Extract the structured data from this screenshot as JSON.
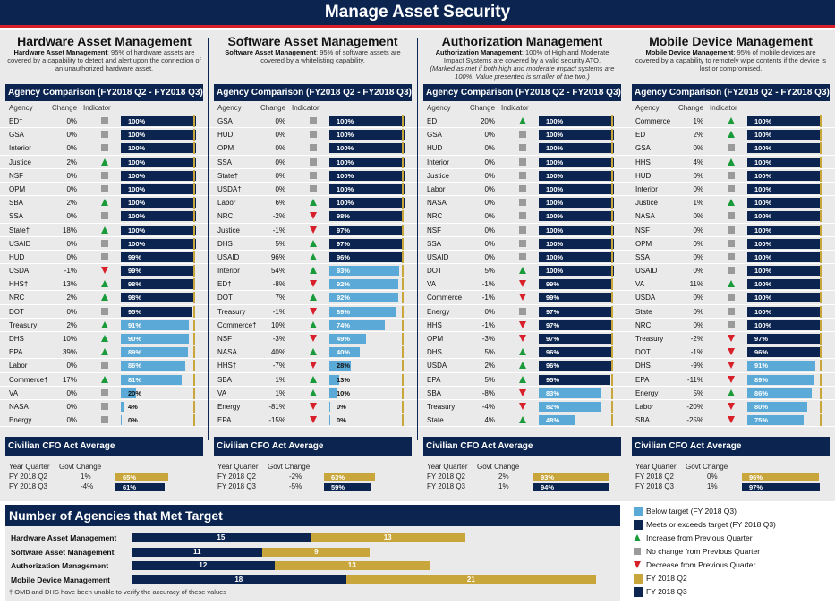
{
  "title": "Manage Asset Security",
  "colors": {
    "navy": "#0b2550",
    "blue": "#5aa9d6",
    "gold": "#c9a63b",
    "green": "#1a9b3a",
    "red": "#d7202a",
    "gray": "#9a9a9a"
  },
  "panels": [
    {
      "title": "Hardware Asset Management",
      "desc_bold": "Hardware Asset Management",
      "desc": ": 95% of hardware assets are covered by a capability to detect and alert upon the connection of an unauthorized hardware asset.",
      "comparison_header": "Agency Comparison (FY2018 Q2 - FY2018 Q3)",
      "col_agency": "Agency",
      "col_change": "Change",
      "col_indicator": "Indicator",
      "rows": [
        {
          "agency": "ED†",
          "change": "0%",
          "ind": "nc",
          "value": 100,
          "label": "100%"
        },
        {
          "agency": "GSA",
          "change": "0%",
          "ind": "nc",
          "value": 100,
          "label": "100%"
        },
        {
          "agency": "Interior",
          "change": "0%",
          "ind": "nc",
          "value": 100,
          "label": "100%"
        },
        {
          "agency": "Justice",
          "change": "2%",
          "ind": "up",
          "value": 100,
          "label": "100%"
        },
        {
          "agency": "NSF",
          "change": "0%",
          "ind": "nc",
          "value": 100,
          "label": "100%"
        },
        {
          "agency": "OPM",
          "change": "0%",
          "ind": "nc",
          "value": 100,
          "label": "100%"
        },
        {
          "agency": "SBA",
          "change": "2%",
          "ind": "up",
          "value": 100,
          "label": "100%"
        },
        {
          "agency": "SSA",
          "change": "0%",
          "ind": "nc",
          "value": 100,
          "label": "100%"
        },
        {
          "agency": "State†",
          "change": "18%",
          "ind": "up",
          "value": 100,
          "label": "100%"
        },
        {
          "agency": "USAID",
          "change": "0%",
          "ind": "nc",
          "value": 100,
          "label": "100%"
        },
        {
          "agency": "HUD",
          "change": "0%",
          "ind": "nc",
          "value": 99,
          "label": "99%"
        },
        {
          "agency": "USDA",
          "change": "-1%",
          "ind": "dn",
          "value": 99,
          "label": "99%"
        },
        {
          "agency": "HHS†",
          "change": "13%",
          "ind": "up",
          "value": 98,
          "label": "98%"
        },
        {
          "agency": "NRC",
          "change": "2%",
          "ind": "up",
          "value": 98,
          "label": "98%"
        },
        {
          "agency": "DOT",
          "change": "0%",
          "ind": "nc",
          "value": 95,
          "label": "95%"
        },
        {
          "agency": "Treasury",
          "change": "2%",
          "ind": "up",
          "value": 91,
          "label": "91%"
        },
        {
          "agency": "DHS",
          "change": "10%",
          "ind": "up",
          "value": 90,
          "label": "90%"
        },
        {
          "agency": "EPA",
          "change": "39%",
          "ind": "up",
          "value": 89,
          "label": "89%"
        },
        {
          "agency": "Labor",
          "change": "0%",
          "ind": "nc",
          "value": 86,
          "label": "86%"
        },
        {
          "agency": "Commerce†",
          "change": "17%",
          "ind": "up",
          "value": 81,
          "label": "81%"
        },
        {
          "agency": "VA",
          "change": "0%",
          "ind": "nc",
          "value": 20,
          "label": "20%"
        },
        {
          "agency": "NASA",
          "change": "0%",
          "ind": "nc",
          "value": 4,
          "label": "4%"
        },
        {
          "agency": "Energy",
          "change": "0%",
          "ind": "nc",
          "value": 0,
          "label": "0%"
        }
      ],
      "cfo_header": "Civilian CFO Act Average",
      "cfo_cols": [
        "Year Quarter",
        "Govt Change"
      ],
      "cfo": [
        {
          "q": "FY 2018 Q2",
          "change": "1%",
          "value": 65,
          "label": "65%"
        },
        {
          "q": "FY 2018 Q3",
          "change": "-4%",
          "value": 61,
          "label": "61%"
        }
      ]
    },
    {
      "title": "Software Asset Management",
      "desc_bold": "Software Asset Management",
      "desc": ": 95% of software assets are covered by a whitelisting capability.",
      "comparison_header": "Agency Comparison (FY2018 Q2 - FY2018 Q3)",
      "col_agency": "Agency",
      "col_change": "Change",
      "col_indicator": "Indicator",
      "rows": [
        {
          "agency": "GSA",
          "change": "0%",
          "ind": "nc",
          "value": 100,
          "label": "100%"
        },
        {
          "agency": "HUD",
          "change": "0%",
          "ind": "nc",
          "value": 100,
          "label": "100%"
        },
        {
          "agency": "OPM",
          "change": "0%",
          "ind": "nc",
          "value": 100,
          "label": "100%"
        },
        {
          "agency": "SSA",
          "change": "0%",
          "ind": "nc",
          "value": 100,
          "label": "100%"
        },
        {
          "agency": "State†",
          "change": "0%",
          "ind": "nc",
          "value": 100,
          "label": "100%"
        },
        {
          "agency": "USDA†",
          "change": "0%",
          "ind": "nc",
          "value": 100,
          "label": "100%"
        },
        {
          "agency": "Labor",
          "change": "6%",
          "ind": "up",
          "value": 100,
          "label": "100%"
        },
        {
          "agency": "NRC",
          "change": "-2%",
          "ind": "dn",
          "value": 98,
          "label": "98%"
        },
        {
          "agency": "Justice",
          "change": "-1%",
          "ind": "dn",
          "value": 97,
          "label": "97%"
        },
        {
          "agency": "DHS",
          "change": "5%",
          "ind": "up",
          "value": 97,
          "label": "97%"
        },
        {
          "agency": "USAID",
          "change": "96%",
          "ind": "up",
          "value": 96,
          "label": "96%"
        },
        {
          "agency": "Interior",
          "change": "54%",
          "ind": "up",
          "value": 93,
          "label": "93%"
        },
        {
          "agency": "ED†",
          "change": "-8%",
          "ind": "dn",
          "value": 92,
          "label": "92%"
        },
        {
          "agency": "DOT",
          "change": "7%",
          "ind": "up",
          "value": 92,
          "label": "92%"
        },
        {
          "agency": "Treasury",
          "change": "-1%",
          "ind": "dn",
          "value": 89,
          "label": "89%"
        },
        {
          "agency": "Commerce†",
          "change": "10%",
          "ind": "up",
          "value": 74,
          "label": "74%"
        },
        {
          "agency": "NSF",
          "change": "-3%",
          "ind": "dn",
          "value": 49,
          "label": "49%"
        },
        {
          "agency": "NASA",
          "change": "40%",
          "ind": "up",
          "value": 40,
          "label": "40%"
        },
        {
          "agency": "HHS†",
          "change": "-7%",
          "ind": "dn",
          "value": 28,
          "label": "28%"
        },
        {
          "agency": "SBA",
          "change": "1%",
          "ind": "up",
          "value": 13,
          "label": "13%"
        },
        {
          "agency": "VA",
          "change": "1%",
          "ind": "up",
          "value": 10,
          "label": "10%"
        },
        {
          "agency": "Energy",
          "change": "-81%",
          "ind": "dn",
          "value": 0,
          "label": "0%"
        },
        {
          "agency": "EPA",
          "change": "-15%",
          "ind": "dn",
          "value": 0,
          "label": "0%"
        }
      ],
      "cfo_header": "Civilian CFO Act Average",
      "cfo_cols": [
        "Year Quarter",
        "Govt Change"
      ],
      "cfo": [
        {
          "q": "FY 2018 Q2",
          "change": "-2%",
          "value": 63,
          "label": "63%"
        },
        {
          "q": "FY 2018 Q3",
          "change": "-5%",
          "value": 59,
          "label": "59%"
        }
      ]
    },
    {
      "title": "Authorization Management",
      "desc_bold": "Authorization Management",
      "desc": ": 100% of High and Moderate Impact Systems are covered by a valid security ATO.",
      "desc_italic": "(Marked as met if both high and moderate impact systems are 100%. Value presented is smaller of the two.)",
      "comparison_header": "Agency Comparison (FY2018 Q2 - FY2018 Q3)",
      "col_agency": "Agency",
      "col_change": "Change",
      "col_indicator": "Indicator",
      "rows": [
        {
          "agency": "ED",
          "change": "20%",
          "ind": "up",
          "value": 100,
          "label": "100%"
        },
        {
          "agency": "GSA",
          "change": "0%",
          "ind": "nc",
          "value": 100,
          "label": "100%"
        },
        {
          "agency": "HUD",
          "change": "0%",
          "ind": "nc",
          "value": 100,
          "label": "100%"
        },
        {
          "agency": "Interior",
          "change": "0%",
          "ind": "nc",
          "value": 100,
          "label": "100%"
        },
        {
          "agency": "Justice",
          "change": "0%",
          "ind": "nc",
          "value": 100,
          "label": "100%"
        },
        {
          "agency": "Labor",
          "change": "0%",
          "ind": "nc",
          "value": 100,
          "label": "100%"
        },
        {
          "agency": "NASA",
          "change": "0%",
          "ind": "nc",
          "value": 100,
          "label": "100%"
        },
        {
          "agency": "NRC",
          "change": "0%",
          "ind": "nc",
          "value": 100,
          "label": "100%"
        },
        {
          "agency": "NSF",
          "change": "0%",
          "ind": "nc",
          "value": 100,
          "label": "100%"
        },
        {
          "agency": "SSA",
          "change": "0%",
          "ind": "nc",
          "value": 100,
          "label": "100%"
        },
        {
          "agency": "USAID",
          "change": "0%",
          "ind": "nc",
          "value": 100,
          "label": "100%"
        },
        {
          "agency": "DOT",
          "change": "5%",
          "ind": "up",
          "value": 100,
          "label": "100%"
        },
        {
          "agency": "VA",
          "change": "-1%",
          "ind": "dn",
          "value": 99,
          "label": "99%"
        },
        {
          "agency": "Commerce",
          "change": "-1%",
          "ind": "dn",
          "value": 99,
          "label": "99%"
        },
        {
          "agency": "Energy",
          "change": "0%",
          "ind": "nc",
          "value": 97,
          "label": "97%"
        },
        {
          "agency": "HHS",
          "change": "-1%",
          "ind": "dn",
          "value": 97,
          "label": "97%"
        },
        {
          "agency": "OPM",
          "change": "-3%",
          "ind": "dn",
          "value": 97,
          "label": "97%"
        },
        {
          "agency": "DHS",
          "change": "5%",
          "ind": "up",
          "value": 96,
          "label": "96%"
        },
        {
          "agency": "USDA",
          "change": "2%",
          "ind": "up",
          "value": 96,
          "label": "96%"
        },
        {
          "agency": "EPA",
          "change": "5%",
          "ind": "up",
          "value": 95,
          "label": "95%"
        },
        {
          "agency": "SBA",
          "change": "-8%",
          "ind": "dn",
          "value": 83,
          "label": "83%"
        },
        {
          "agency": "Treasury",
          "change": "-4%",
          "ind": "dn",
          "value": 82,
          "label": "82%"
        },
        {
          "agency": "State",
          "change": "4%",
          "ind": "up",
          "value": 48,
          "label": "48%"
        }
      ],
      "cfo_header": "Civilian CFO Act Average",
      "cfo_cols": [
        "Year Quarter",
        "Govt Change"
      ],
      "cfo": [
        {
          "q": "FY 2018 Q2",
          "change": "2%",
          "value": 93,
          "label": "93%"
        },
        {
          "q": "FY 2018 Q3",
          "change": "1%",
          "value": 94,
          "label": "94%"
        }
      ]
    },
    {
      "title": "Mobile Device Management",
      "desc_bold": "Mobile Device Management",
      "desc": ": 95% of mobile devices are covered by a capability to remotely wipe contents if the device is lost or compromised.",
      "comparison_header": "Agency Comparison (FY2018 Q2 - FY2018 Q3)",
      "col_agency": "Agency",
      "col_change": "Change",
      "col_indicator": "Indicator",
      "rows": [
        {
          "agency": "Commerce",
          "change": "1%",
          "ind": "up",
          "value": 100,
          "label": "100%"
        },
        {
          "agency": "ED",
          "change": "2%",
          "ind": "up",
          "value": 100,
          "label": "100%"
        },
        {
          "agency": "GSA",
          "change": "0%",
          "ind": "nc",
          "value": 100,
          "label": "100%"
        },
        {
          "agency": "HHS",
          "change": "4%",
          "ind": "up",
          "value": 100,
          "label": "100%"
        },
        {
          "agency": "HUD",
          "change": "0%",
          "ind": "nc",
          "value": 100,
          "label": "100%"
        },
        {
          "agency": "Interior",
          "change": "0%",
          "ind": "nc",
          "value": 100,
          "label": "100%"
        },
        {
          "agency": "Justice",
          "change": "1%",
          "ind": "up",
          "value": 100,
          "label": "100%"
        },
        {
          "agency": "NASA",
          "change": "0%",
          "ind": "nc",
          "value": 100,
          "label": "100%"
        },
        {
          "agency": "NSF",
          "change": "0%",
          "ind": "nc",
          "value": 100,
          "label": "100%"
        },
        {
          "agency": "OPM",
          "change": "0%",
          "ind": "nc",
          "value": 100,
          "label": "100%"
        },
        {
          "agency": "SSA",
          "change": "0%",
          "ind": "nc",
          "value": 100,
          "label": "100%"
        },
        {
          "agency": "USAID",
          "change": "0%",
          "ind": "nc",
          "value": 100,
          "label": "100%"
        },
        {
          "agency": "VA",
          "change": "11%",
          "ind": "up",
          "value": 100,
          "label": "100%"
        },
        {
          "agency": "USDA",
          "change": "0%",
          "ind": "nc",
          "value": 100,
          "label": "100%"
        },
        {
          "agency": "State",
          "change": "0%",
          "ind": "nc",
          "value": 100,
          "label": "100%"
        },
        {
          "agency": "NRC",
          "change": "0%",
          "ind": "nc",
          "value": 100,
          "label": "100%"
        },
        {
          "agency": "Treasury",
          "change": "-2%",
          "ind": "dn",
          "value": 97,
          "label": "97%"
        },
        {
          "agency": "DOT",
          "change": "-1%",
          "ind": "dn",
          "value": 96,
          "label": "96%"
        },
        {
          "agency": "DHS",
          "change": "-9%",
          "ind": "dn",
          "value": 91,
          "label": "91%"
        },
        {
          "agency": "EPA",
          "change": "-11%",
          "ind": "dn",
          "value": 89,
          "label": "89%"
        },
        {
          "agency": "Energy",
          "change": "5%",
          "ind": "up",
          "value": 86,
          "label": "86%"
        },
        {
          "agency": "Labor",
          "change": "-20%",
          "ind": "dn",
          "value": 80,
          "label": "80%"
        },
        {
          "agency": "SBA",
          "change": "-25%",
          "ind": "dn",
          "value": 75,
          "label": "75%"
        }
      ],
      "cfo_header": "Civilian CFO Act Average",
      "cfo_cols": [
        "Year Quarter",
        "Govt Change"
      ],
      "cfo": [
        {
          "q": "FY 2018 Q2",
          "change": "0%",
          "value": 96,
          "label": "96%"
        },
        {
          "q": "FY 2018 Q3",
          "change": "1%",
          "value": 97,
          "label": "97%"
        }
      ]
    }
  ],
  "met_target": {
    "title": "Number of Agencies that Met Target",
    "rows": [
      {
        "label": "Hardware Asset Management",
        "q3": 15,
        "q2": 13
      },
      {
        "label": "Software Asset Management",
        "q3": 11,
        "q2": 9
      },
      {
        "label": "Authorization Management",
        "q3": 12,
        "q2": 13
      },
      {
        "label": "Mobile Device Management",
        "q3": 18,
        "q2": 21
      }
    ],
    "footnote": "† OMB and DHS have been unable to verify the accuracy of these values"
  },
  "legend": [
    {
      "kind": "swatch",
      "color": "#5aa9d6",
      "text": "Below target (FY 2018 Q3)"
    },
    {
      "kind": "swatch",
      "color": "#0b2550",
      "text": "Meets or exceeds target (FY 2018 Q3)"
    },
    {
      "kind": "up",
      "text": "Increase from Previous Quarter"
    },
    {
      "kind": "nc",
      "text": "No change from Previous Quarter"
    },
    {
      "kind": "dn",
      "text": "Decrease from Previous Quarter"
    },
    {
      "kind": "swatch",
      "color": "#c9a63b",
      "text": "FY 2018 Q2"
    },
    {
      "kind": "swatch",
      "color": "#0b2550",
      "text": "FY 2018 Q3"
    }
  ]
}
